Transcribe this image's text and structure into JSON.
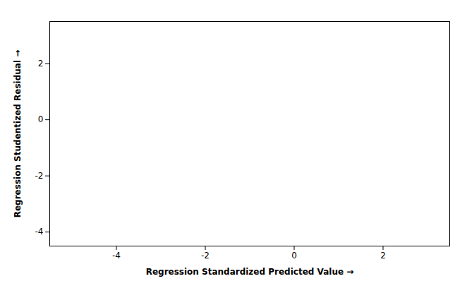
{
  "chart_data": {
    "type": "scatter",
    "xlabel": "Regression Standardized Predicted Value",
    "ylabel": "Regression Studentized Residual",
    "x": [],
    "values": [],
    "xlim": [
      -5.5,
      3.5
    ],
    "ylim": [
      -4.5,
      3.5
    ],
    "xticks": [
      -4,
      -2,
      0,
      2
    ],
    "yticks": [
      -4,
      -2,
      0,
      2
    ],
    "grid": false
  }
}
